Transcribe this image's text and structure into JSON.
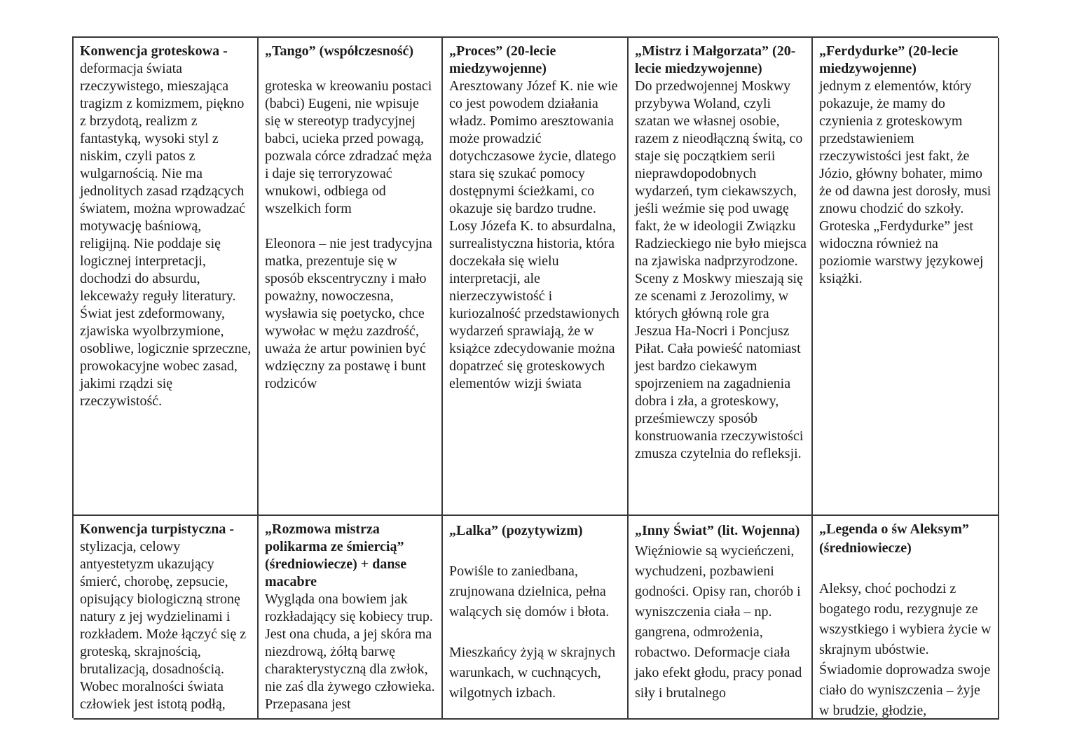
{
  "document": {
    "language": "pl",
    "type": "table-notes",
    "topic": "Konwencje literackie - groteskowa i turpistyczna"
  },
  "table": {
    "border_color": "#383838",
    "text_color": "#1c1c1c",
    "columns": 5,
    "rows": [
      {
        "cells": [
          {
            "title": "Konwencja groteskowa - ",
            "body": "deformacja świata rzeczywistego, mieszająca tragizm z komizmem, piękno z brzydotą, realizm z fantastyką, wysoki styl z niskim, czyli patos z wulgarnością. Nie ma jednolitych  zasad rządzących światem, można wprowadzać motywację baśniową, religijną. Nie poddaje się logicznej interpretacji, dochodzi do absurdu, lekceważy reguły literatury. Świat jest zdeformowany, zjawiska wyolbrzymione, osobliwe, logicznie sprzeczne, prowokacyjne wobec zasad, jakimi rządzi się rzeczywistość."
          },
          {
            "title": "„Tango” (współczesność)",
            "body": "\n\ngroteska w kreowaniu postaci (babci) Eugeni, nie wpisuje się w stereotyp tradycyjnej babci, ucieka przed powagą, pozwala córce zdradzać męża i daje się terroryzować wnukowi, odbiega od wszelkich form\n\nEleonora – nie jest tradycyjna matka, prezentuje się w sposób ekscentryczny i mało poważny, nowoczesna, wysławia się poetycko, chce wywołac w mężu zazdrość, uważa że artur powinien być wdzięczny za postawę i bunt rodziców"
          },
          {
            "title": "„Proces” (20-lecie miedzywojenne)",
            "body": "\nAresztowany Józef K. nie wie co jest powodem działania władz. Pomimo aresztowania może prowadzić dotychczasowe życie, dlatego stara się szukać pomocy dostępnymi ścieżkami, co okazuje się bardzo trudne. Losy Józefa K. to absurdalna, surrealistyczna historia, która doczekała się wielu interpretacji, ale nierzeczywistość i kuriozalność przedstawionych wydarzeń sprawiają, że w książce zdecydowanie można dopatrzeć się groteskowych elementów wizji świata"
          },
          {
            "title": "„Mistrz i Małgorzata” (20-lecie miedzywojenne)",
            "body": "\nDo przedwojennej Moskwy przybywa Woland, czyli szatan we własnej osobie, razem z nieodłączną świtą, co staje się początkiem serii nieprawdopodobnych wydarzeń, tym ciekawszych, jeśli weźmie się pod uwagę fakt, że w ideologii Związku Radzieckiego nie było miejsca na zjawiska nadprzyrodzone. Sceny z Moskwy mieszają się ze scenami z Jerozolimy, w których główną role gra Jeszua Ha-Nocri i Poncjusz Piłat. Cała powieść natomiast jest bardzo ciekawym spojrzeniem na zagadnienia dobra i zła, a groteskowy, prześmiewczy sposób konstruowania rzeczywistości zmusza czytelnia do refleksji."
          },
          {
            "title": "„Ferdydurke” (20-lecie miedzywojenne)",
            "body": "\njednym z elementów, który pokazuje, że mamy do czynienia z groteskowym przedstawieniem rzeczywistości jest fakt, że Józio, główny bohater, mimo że od dawna jest dorosły, musi znowu chodzić do szkoły. Groteska „Ferdydurke” jest widoczna również na poziomie warstwy językowej książki."
          }
        ]
      },
      {
        "cells": [
          {
            "title": "Konwencja turpistyczna - ",
            "body": "stylizacja, celowy antyestetyzm ukazujący śmierć, chorobę, zepsucie, opisujący biologiczną stronę natury z jej wydzielinami i rozkładem. Może łączyć się z groteską, skrajnością, brutalizacją, dosadnością. Wobec moralności świata człowiek jest istotą podłą,"
          },
          {
            "title": "„Rozmowa mistrza polikarma ze śmiercią” (średniowiecze) + danse macabre",
            "body": "\nWygląda ona bowiem jak rozkładający się kobiecy trup. Jest ona chuda, a jej skóra ma niezdrową, żółtą barwę charakterystyczną dla zwłok, nie zaś dla żywego człowieka. Przepasana jest"
          },
          {
            "title": "„Lalka” (pozytywizm)",
            "body": "\n\nPowiśle to zaniedbana, zrujnowana dzielnica, pełna walących się domów i błota.\n\nMieszkańcy żyją w skrajnych warunkach, w cuchnących, wilgotnych izbach."
          },
          {
            "title": "„Inny Świat” (lit. Wojenna)",
            "body": "\nWięźniowie są wycieńczeni, wychudzeni, pozbawieni godności. Opisy ran, chorób i wyniszczenia ciała – np. gangrena, odmrożenia, robactwo. Deformacje ciała jako efekt głodu, pracy ponad siły i brutalnego"
          },
          {
            "title": "„Legenda o św Aleksym” (średniowiecze)",
            "body": "\n\nAleksy, choć pochodzi z bogatego rodu, rezygnuje ze wszystkiego i wybiera życie w skrajnym ubóstwie. Świadomie doprowadza swoje ciało do wyniszczenia – żyje w brudzie, głodzie,"
          }
        ]
      }
    ]
  }
}
